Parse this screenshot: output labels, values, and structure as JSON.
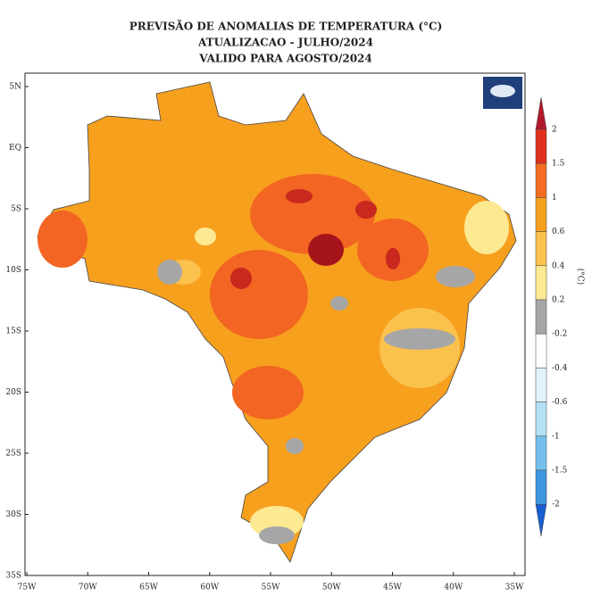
{
  "header": {
    "lines": [
      "PREVISÃO DE ANOMALIAS DE TEMPERATURA (°C)",
      "ATUALIZACAO - JULHO/2024",
      "VALIDO PARA AGOSTO/2024"
    ]
  },
  "map": {
    "lat_labels": [
      "5N",
      "EQ",
      "5S",
      "10S",
      "15S",
      "20S",
      "25S",
      "30S",
      "35S"
    ],
    "lon_labels": [
      "75W",
      "70W",
      "65W",
      "60W",
      "55W",
      "50W",
      "45W",
      "40W",
      "35W"
    ]
  },
  "legend": {
    "ticks": [
      2,
      1.5,
      1,
      0.6,
      0.4,
      0.2,
      -0.2,
      -0.4,
      -0.6,
      -1,
      -1.5,
      -2
    ],
    "unit": "(°C)"
  }
}
